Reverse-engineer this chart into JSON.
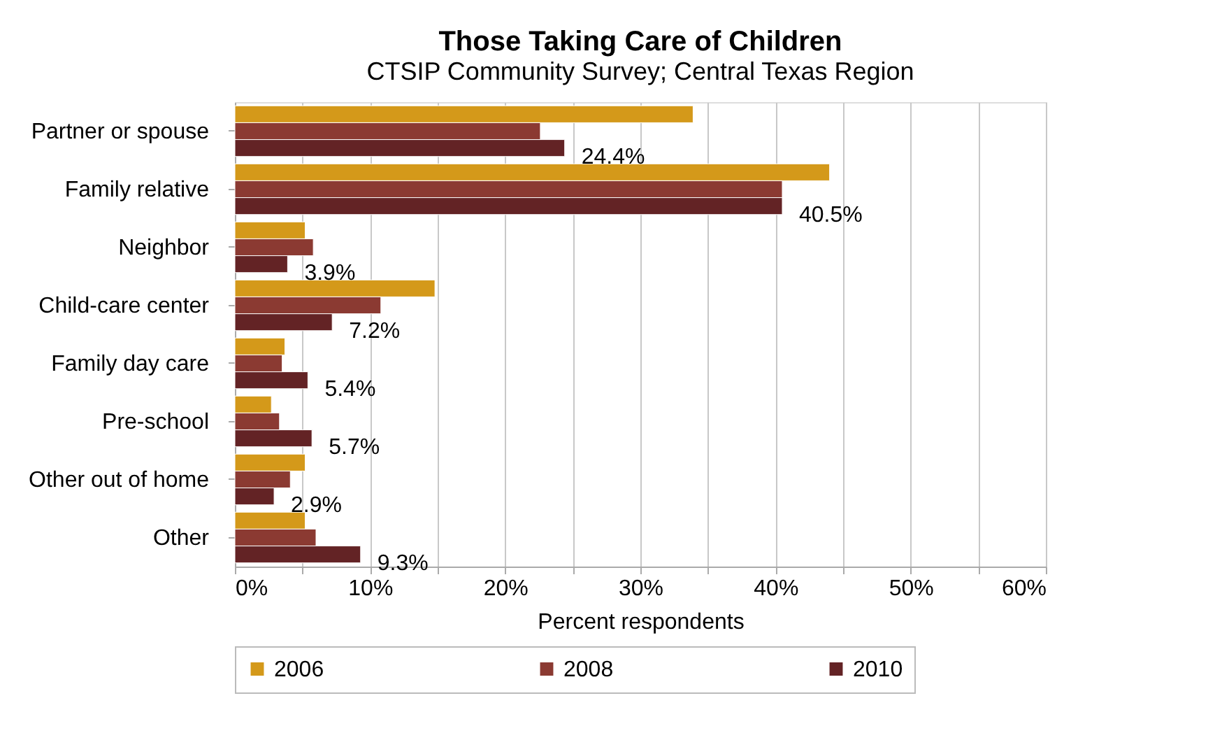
{
  "chart_data": {
    "type": "bar",
    "orientation": "horizontal",
    "title": "Those Taking Care of Children",
    "subtitle": "CTSIP Community Survey; Central Texas Region",
    "xlabel": "Percent respondents",
    "categories": [
      "Partner or spouse",
      "Family relative",
      "Neighbor",
      "Child-care center",
      "Family day care",
      "Pre-school",
      "Other out of home",
      "Other"
    ],
    "series": [
      {
        "name": "2006",
        "color": "#d4991a",
        "values": [
          33.9,
          44.0,
          5.2,
          14.8,
          3.7,
          2.7,
          5.2,
          5.2
        ]
      },
      {
        "name": "2008",
        "color": "#8b3a32",
        "values": [
          22.6,
          40.5,
          5.8,
          10.8,
          3.5,
          3.3,
          4.1,
          6.0
        ]
      },
      {
        "name": "2010",
        "color": "#632325",
        "values": [
          24.4,
          40.5,
          3.9,
          7.2,
          5.4,
          5.7,
          2.9,
          9.3
        ],
        "value_labels": [
          "24.4%",
          "40.5%",
          "3.9%",
          "7.2%",
          "5.4%",
          "5.7%",
          "2.9%",
          "9.3%"
        ]
      }
    ],
    "xlim": [
      0,
      60
    ],
    "xticks": [
      {
        "value": 0,
        "label": "0%"
      },
      {
        "value": 5,
        "label": null
      },
      {
        "value": 10,
        "label": "10%"
      },
      {
        "value": 15,
        "label": null
      },
      {
        "value": 20,
        "label": "20%"
      },
      {
        "value": 25,
        "label": null
      },
      {
        "value": 30,
        "label": "30%"
      },
      {
        "value": 35,
        "label": null
      },
      {
        "value": 40,
        "label": "40%"
      },
      {
        "value": 45,
        "label": null
      },
      {
        "value": 50,
        "label": "50%"
      },
      {
        "value": 55,
        "label": null
      },
      {
        "value": 60,
        "label": "60%"
      }
    ],
    "grid": "x",
    "legend": "bottom"
  }
}
